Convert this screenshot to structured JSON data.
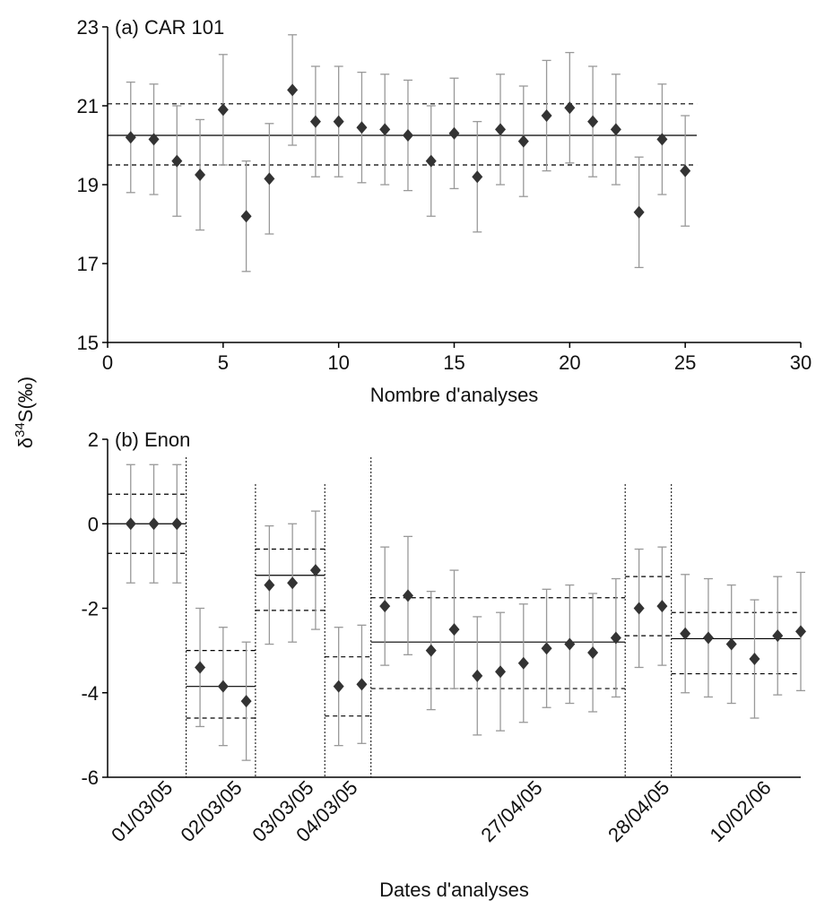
{
  "shared_ylabel": {
    "prefix": "δ",
    "sup": "34",
    "suffix": "S(‰)"
  },
  "chart_data": [
    {
      "type": "scatter",
      "title": "(a) CAR 101",
      "xlabel": "Nombre d'analyses",
      "xlim": [
        0,
        30
      ],
      "xticks": [
        0,
        5,
        10,
        15,
        20,
        25,
        30
      ],
      "ylim": [
        15,
        23
      ],
      "yticks": [
        15,
        17,
        19,
        21,
        23
      ],
      "x": [
        1,
        2,
        3,
        4,
        5,
        6,
        7,
        8,
        9,
        10,
        11,
        12,
        13,
        14,
        15,
        16,
        17,
        18,
        19,
        20,
        21,
        22,
        23,
        24,
        25
      ],
      "series": [
        {
          "color": "#333333",
          "values": [
            20.2,
            20.15,
            19.6,
            19.25,
            20.9,
            18.2,
            19.15,
            21.4,
            20.6,
            20.6,
            20.45,
            20.4,
            20.25,
            19.6,
            20.3,
            19.2,
            20.4,
            20.1,
            20.75,
            20.95,
            20.6,
            20.4,
            18.3,
            20.15,
            19.35
          ],
          "errors": [
            1.4,
            1.4,
            1.4,
            1.4,
            1.4,
            1.4,
            1.4,
            1.4,
            1.4,
            1.4,
            1.4,
            1.4,
            1.4,
            1.4,
            1.4,
            1.4,
            1.4,
            1.4,
            1.4,
            1.4,
            1.4,
            1.4,
            1.4,
            1.4,
            1.4
          ]
        }
      ],
      "reference_lines": [
        {
          "value": 20.25,
          "style": "solid",
          "xlim": [
            0,
            25.5
          ]
        },
        {
          "value": 21.05,
          "style": "dashed",
          "xlim": [
            0,
            25.5
          ]
        },
        {
          "value": 19.5,
          "style": "dashed",
          "xlim": [
            0,
            25.5
          ]
        }
      ]
    },
    {
      "type": "scatter",
      "title": "(b) Enon",
      "xlabel": "Dates d'analyses",
      "xlim": [
        0,
        30
      ],
      "xticks": [
        {
          "value": 2.4,
          "label": "01/03/05"
        },
        {
          "value": 5.4,
          "label": "02/03/05"
        },
        {
          "value": 8.5,
          "label": "03/03/05"
        },
        {
          "value": 10.4,
          "label": "04/03/05"
        },
        {
          "value": 18.4,
          "label": "27/04/05"
        },
        {
          "value": 23.9,
          "label": "28/04/05"
        },
        {
          "value": 28.3,
          "label": "10/02/06"
        }
      ],
      "ylim": [
        -6,
        2
      ],
      "yticks": [
        -6,
        -4,
        -2,
        0,
        2
      ],
      "x": [
        1,
        2,
        3,
        4,
        5,
        6,
        7,
        8,
        9,
        10,
        11,
        12,
        13,
        14,
        15,
        16,
        17,
        18,
        19,
        20,
        21,
        22,
        23,
        24,
        25,
        26,
        27,
        28,
        29,
        30
      ],
      "series": [
        {
          "color": "#333333",
          "values": [
            0,
            0,
            0,
            -3.4,
            -3.85,
            -4.2,
            -1.45,
            -1.4,
            -1.1,
            -3.85,
            -3.8,
            -1.95,
            -1.7,
            -3.0,
            -2.5,
            -3.6,
            -3.5,
            -3.3,
            -2.95,
            -2.85,
            -3.05,
            -2.7,
            -2.0,
            -1.95,
            -2.6,
            -2.7,
            -2.85,
            -3.2,
            -2.65,
            -2.55
          ],
          "errors": [
            1.4,
            1.4,
            1.4,
            1.4,
            1.4,
            1.4,
            1.4,
            1.4,
            1.4,
            1.4,
            1.4,
            1.4,
            1.4,
            1.4,
            1.4,
            1.4,
            1.4,
            1.4,
            1.4,
            1.4,
            1.4,
            1.4,
            1.4,
            1.4,
            1.4,
            1.4,
            1.4,
            1.4,
            1.4,
            1.4
          ]
        }
      ],
      "separators": [
        3.4,
        6.4,
        9.4,
        11.4,
        22.4,
        24.4
      ],
      "reference_lines": [
        {
          "value": 0,
          "style": "solid",
          "xlim": [
            0,
            3.4
          ]
        },
        {
          "value": 0.7,
          "style": "dashed",
          "xlim": [
            0,
            3.4
          ]
        },
        {
          "value": -0.7,
          "style": "dashed",
          "xlim": [
            0,
            3.4
          ]
        },
        {
          "value": -3.85,
          "style": "solid",
          "xlim": [
            3.4,
            6.4
          ]
        },
        {
          "value": -3.0,
          "style": "dashed",
          "xlim": [
            3.4,
            6.4
          ]
        },
        {
          "value": -4.6,
          "style": "dashed",
          "xlim": [
            3.4,
            6.4
          ]
        },
        {
          "value": -1.22,
          "style": "solid",
          "xlim": [
            6.4,
            9.4
          ]
        },
        {
          "value": -0.6,
          "style": "dashed",
          "xlim": [
            6.4,
            9.4
          ]
        },
        {
          "value": -2.05,
          "style": "dashed",
          "xlim": [
            6.4,
            9.4
          ]
        },
        {
          "value": -3.15,
          "style": "dashed",
          "xlim": [
            9.4,
            11.4
          ]
        },
        {
          "value": -4.55,
          "style": "dashed",
          "xlim": [
            9.4,
            11.4
          ]
        },
        {
          "value": -2.8,
          "style": "solid",
          "xlim": [
            11.4,
            22.4
          ]
        },
        {
          "value": -1.75,
          "style": "dashed",
          "xlim": [
            11.4,
            22.4
          ]
        },
        {
          "value": -3.9,
          "style": "dashed",
          "xlim": [
            11.4,
            22.4
          ]
        },
        {
          "value": -1.25,
          "style": "dashed",
          "xlim": [
            22.4,
            24.4
          ]
        },
        {
          "value": -2.65,
          "style": "dashed",
          "xlim": [
            22.4,
            24.4
          ]
        },
        {
          "value": -2.72,
          "style": "solid",
          "xlim": [
            24.4,
            30
          ]
        },
        {
          "value": -2.1,
          "style": "dashed",
          "xlim": [
            24.4,
            30
          ]
        },
        {
          "value": -3.55,
          "style": "dashed",
          "xlim": [
            24.4,
            30
          ]
        }
      ]
    }
  ]
}
